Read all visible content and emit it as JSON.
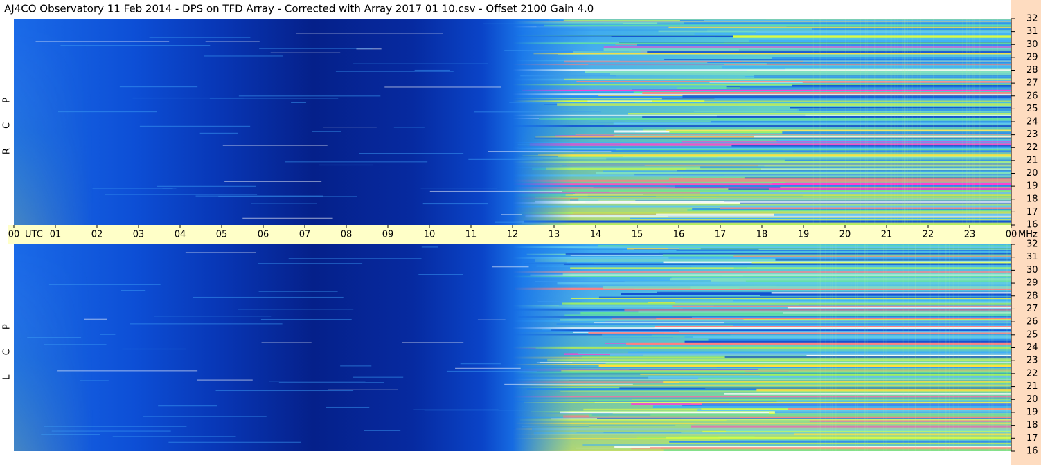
{
  "chart_data": {
    "type": "spectrogram",
    "title": "AJ4CO Observatory  11 Feb 2014  -  DPS on TFD Array  -  Corrected with Array 2017 01 10.csv  -  Offset 2100  Gain 4.0",
    "x_label": "UTC",
    "y_label": "MHz",
    "panels": [
      {
        "label": "R C P"
      },
      {
        "label": "L C P"
      }
    ],
    "xlim": [
      0,
      24
    ],
    "xticks": [
      {
        "value": 0,
        "label": "00"
      },
      {
        "value": 1,
        "label": "01"
      },
      {
        "value": 2,
        "label": "02"
      },
      {
        "value": 3,
        "label": "03"
      },
      {
        "value": 4,
        "label": "04"
      },
      {
        "value": 5,
        "label": "05"
      },
      {
        "value": 6,
        "label": "06"
      },
      {
        "value": 7,
        "label": "07"
      },
      {
        "value": 8,
        "label": "08"
      },
      {
        "value": 9,
        "label": "09"
      },
      10,
      11,
      12,
      13,
      14,
      15,
      16,
      17,
      18,
      19,
      20,
      21,
      22,
      23,
      {
        "value": 24,
        "label": "00"
      }
    ],
    "ylim": [
      16,
      32
    ],
    "yticks": [
      16,
      17,
      18,
      19,
      20,
      21,
      22,
      23,
      24,
      25,
      26,
      27,
      28,
      29,
      30,
      31,
      32
    ]
  }
}
